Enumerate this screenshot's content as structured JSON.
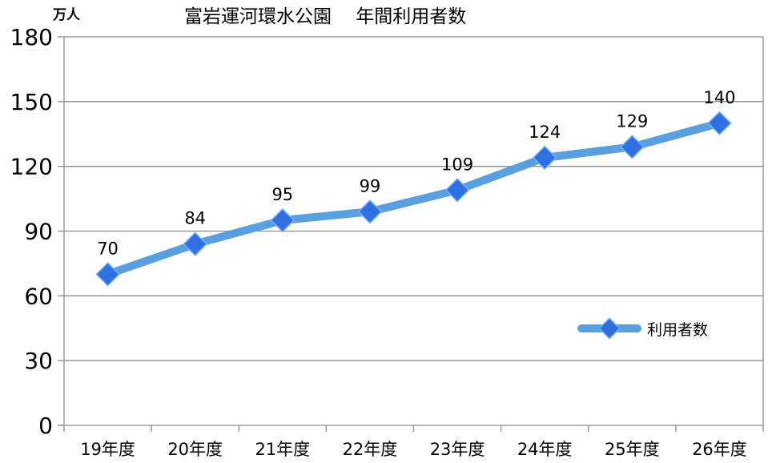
{
  "chart_data": {
    "type": "line",
    "title": "富岩運河環水公園　 年間利用者数",
    "unit_label": "万人",
    "categories": [
      "19年度",
      "20年度",
      "21年度",
      "22年度",
      "23年度",
      "24年度",
      "25年度",
      "26年度"
    ],
    "series": [
      {
        "name": "利用者数",
        "values": [
          70,
          84,
          95,
          99,
          109,
          124,
          129,
          140
        ]
      }
    ],
    "ylim": [
      0,
      180
    ],
    "yticks": [
      "0",
      "30",
      "60",
      "90",
      "120",
      "150",
      "180"
    ],
    "grid": true,
    "legend": "right",
    "colors": {
      "line": "#5aa0e0",
      "marker": "#2f6fe0",
      "grid": "#8c8c8c",
      "axis": "#8c8c8c"
    }
  }
}
